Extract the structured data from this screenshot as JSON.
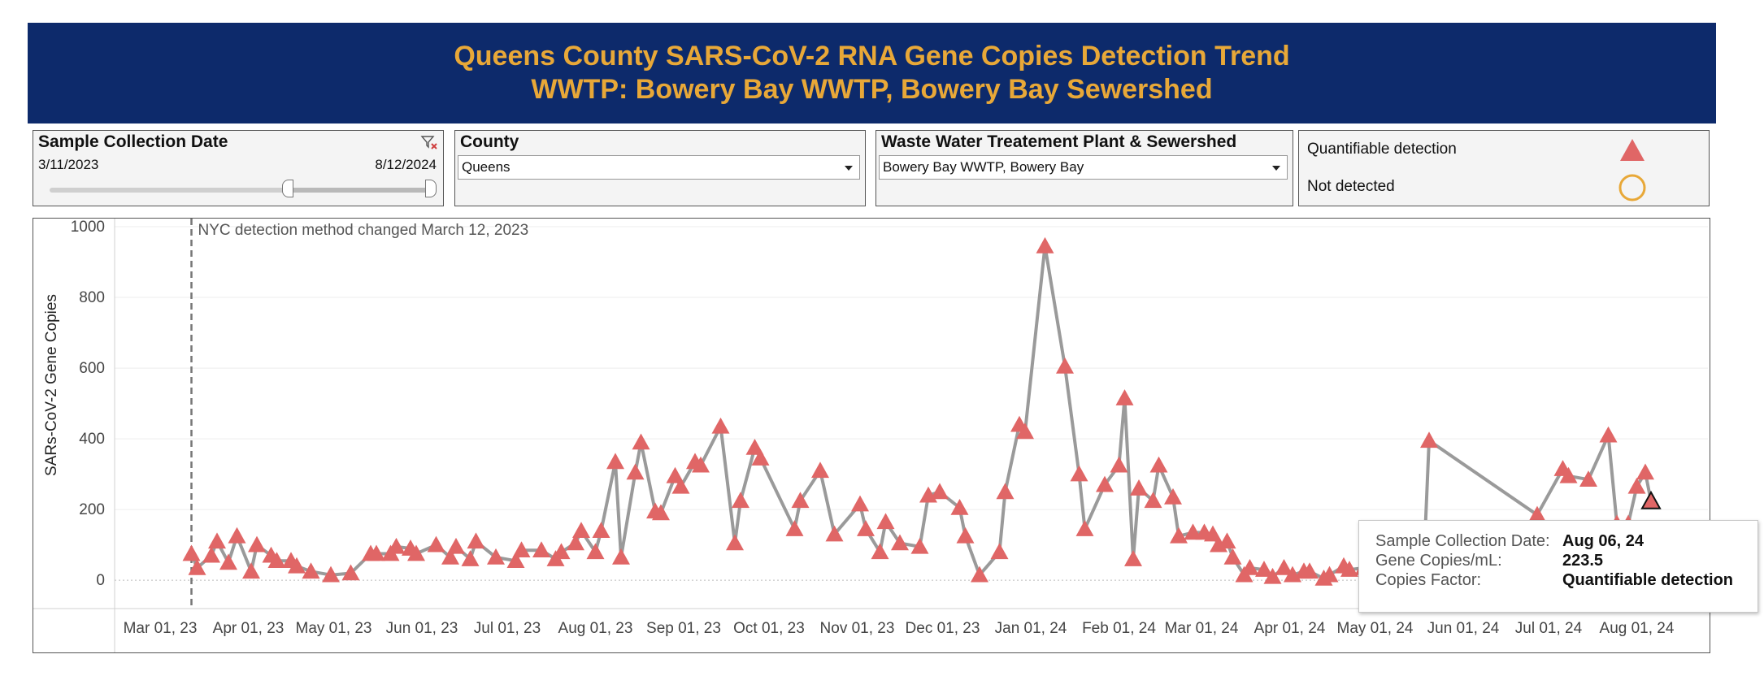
{
  "header": {
    "title_line1": "Queens County SARS-CoV-2 RNA Gene Copies Detection Trend",
    "title_line2": "WWTP: Bowery Bay WWTP, Bowery Bay Sewershed"
  },
  "filters": {
    "date": {
      "label": "Sample Collection Date",
      "start": "3/11/2023",
      "end": "8/12/2024",
      "filter_icon": "clear-filter-icon"
    },
    "county": {
      "label": "County",
      "value": "Queens"
    },
    "plant": {
      "label": "Waste Water Treatement Plant & Sewershed",
      "value": "Bowery Bay WWTP, Bowery Bay"
    }
  },
  "legend": {
    "quantifiable": "Quantifiable detection",
    "not_detected": "Not detected"
  },
  "tooltip": {
    "date_label": "Sample Collection Date:",
    "date_value": "Aug 06, 24",
    "copies_label": "Gene Copies/mL:",
    "copies_value": "223.5",
    "factor_label": "Copies Factor:",
    "factor_value": "Quantifiable detection"
  },
  "colors": {
    "banner": "#0d2a6b",
    "title": "#e8a838",
    "marker": "#e06666",
    "line": "#9a9a9a",
    "not_detected": "#e8a838"
  },
  "chart_data": {
    "type": "line",
    "ylabel": "SARs-CoV-2 Gene Copies",
    "ylim": [
      -80,
      1000
    ],
    "yticks": [
      0,
      200,
      400,
      600,
      800,
      1000
    ],
    "xlim": [
      "2023-02-13",
      "2024-08-26"
    ],
    "xticks": [
      "2023-03-01",
      "2023-04-01",
      "2023-05-01",
      "2023-06-01",
      "2023-07-01",
      "2023-08-01",
      "2023-09-01",
      "2023-10-01",
      "2023-11-01",
      "2023-12-01",
      "2024-01-01",
      "2024-02-01",
      "2024-03-01",
      "2024-04-01",
      "2024-05-01",
      "2024-06-01",
      "2024-07-01",
      "2024-08-01"
    ],
    "xtick_labels": [
      "Mar 01, 23",
      "Apr 01, 23",
      "May 01, 23",
      "Jun 01, 23",
      "Jul 01, 23",
      "Aug 01, 23",
      "Sep 01, 23",
      "Oct 01, 23",
      "Nov 01, 23",
      "Dec 01, 23",
      "Jan 01, 24",
      "Feb 01, 24",
      "Mar 01, 24",
      "Apr 01, 24",
      "May 01, 24",
      "Jun 01, 24",
      "Jul 01, 24",
      "Aug 01, 24"
    ],
    "grid": true,
    "annotation": {
      "date": "2023-03-12",
      "text": "NYC detection method changed March 12, 2023"
    },
    "series": [
      {
        "points": [
          [
            "2023-03-12",
            75
          ],
          [
            "2023-03-14",
            35
          ],
          [
            "2023-03-19",
            70
          ],
          [
            "2023-03-21",
            110
          ],
          [
            "2023-03-25",
            50
          ],
          [
            "2023-03-28",
            125
          ],
          [
            "2023-04-02",
            25
          ],
          [
            "2023-04-04",
            100
          ],
          [
            "2023-04-09",
            70
          ],
          [
            "2023-04-11",
            55
          ],
          [
            "2023-04-16",
            55
          ],
          [
            "2023-04-18",
            40
          ],
          [
            "2023-04-23",
            25
          ],
          [
            "2023-04-30",
            15
          ],
          [
            "2023-05-07",
            20
          ],
          [
            "2023-05-14",
            75
          ],
          [
            "2023-05-16",
            75
          ],
          [
            "2023-05-21",
            75
          ],
          [
            "2023-05-23",
            95
          ],
          [
            "2023-05-28",
            90
          ],
          [
            "2023-05-30",
            75
          ],
          [
            "2023-06-06",
            100
          ],
          [
            "2023-06-11",
            65
          ],
          [
            "2023-06-13",
            95
          ],
          [
            "2023-06-18",
            60
          ],
          [
            "2023-06-20",
            110
          ],
          [
            "2023-06-27",
            65
          ],
          [
            "2023-07-04",
            55
          ],
          [
            "2023-07-06",
            85
          ],
          [
            "2023-07-13",
            85
          ],
          [
            "2023-07-18",
            60
          ],
          [
            "2023-07-20",
            80
          ],
          [
            "2023-07-25",
            105
          ],
          [
            "2023-07-27",
            140
          ],
          [
            "2023-08-01",
            80
          ],
          [
            "2023-08-03",
            140
          ],
          [
            "2023-08-08",
            335
          ],
          [
            "2023-08-10",
            65
          ],
          [
            "2023-08-15",
            305
          ],
          [
            "2023-08-17",
            390
          ],
          [
            "2023-08-22",
            195
          ],
          [
            "2023-08-24",
            190
          ],
          [
            "2023-08-29",
            295
          ],
          [
            "2023-08-31",
            265
          ],
          [
            "2023-09-05",
            335
          ],
          [
            "2023-09-07",
            325
          ],
          [
            "2023-09-14",
            435
          ],
          [
            "2023-09-19",
            105
          ],
          [
            "2023-09-21",
            225
          ],
          [
            "2023-09-26",
            375
          ],
          [
            "2023-09-28",
            345
          ],
          [
            "2023-10-10",
            145
          ],
          [
            "2023-10-12",
            225
          ],
          [
            "2023-10-19",
            310
          ],
          [
            "2023-10-24",
            130
          ],
          [
            "2023-11-02",
            215
          ],
          [
            "2023-11-04",
            145
          ],
          [
            "2023-11-09",
            80
          ],
          [
            "2023-11-11",
            165
          ],
          [
            "2023-11-16",
            105
          ],
          [
            "2023-11-23",
            95
          ],
          [
            "2023-11-26",
            240
          ],
          [
            "2023-11-30",
            250
          ],
          [
            "2023-12-07",
            205
          ],
          [
            "2023-12-09",
            125
          ],
          [
            "2023-12-14",
            15
          ],
          [
            "2023-12-21",
            80
          ],
          [
            "2023-12-23",
            250
          ],
          [
            "2023-12-28",
            440
          ],
          [
            "2023-12-30",
            420
          ],
          [
            "2024-01-06",
            945
          ],
          [
            "2024-01-13",
            605
          ],
          [
            "2024-01-18",
            300
          ],
          [
            "2024-01-20",
            145
          ],
          [
            "2024-01-27",
            270
          ],
          [
            "2024-02-01",
            325
          ],
          [
            "2024-02-03",
            515
          ],
          [
            "2024-02-06",
            60
          ],
          [
            "2024-02-08",
            260
          ],
          [
            "2024-02-13",
            225
          ],
          [
            "2024-02-15",
            325
          ],
          [
            "2024-02-20",
            235
          ],
          [
            "2024-02-22",
            125
          ],
          [
            "2024-02-27",
            135
          ],
          [
            "2024-03-02",
            135
          ],
          [
            "2024-03-05",
            130
          ],
          [
            "2024-03-07",
            100
          ],
          [
            "2024-03-10",
            110
          ],
          [
            "2024-03-12",
            65
          ],
          [
            "2024-03-16",
            15
          ],
          [
            "2024-03-18",
            35
          ],
          [
            "2024-03-23",
            30
          ],
          [
            "2024-03-26",
            10
          ],
          [
            "2024-03-30",
            35
          ],
          [
            "2024-04-02",
            15
          ],
          [
            "2024-04-06",
            25
          ],
          [
            "2024-04-08",
            25
          ],
          [
            "2024-04-13",
            5
          ],
          [
            "2024-04-15",
            15
          ],
          [
            "2024-04-20",
            40
          ],
          [
            "2024-04-22",
            30
          ],
          [
            "2024-04-27",
            35
          ],
          [
            "2024-04-29",
            15
          ],
          [
            "2024-05-04",
            10
          ],
          [
            "2024-05-06",
            10
          ],
          [
            "2024-05-18",
            20
          ],
          [
            "2024-05-20",
            395
          ],
          [
            "2024-06-27",
            185
          ],
          [
            "2024-07-06",
            315
          ],
          [
            "2024-07-08",
            295
          ],
          [
            "2024-07-15",
            285
          ],
          [
            "2024-07-22",
            410
          ],
          [
            "2024-07-25",
            160
          ],
          [
            "2024-07-29",
            160
          ],
          [
            "2024-08-01",
            265
          ],
          [
            "2024-08-06",
            223.5
          ],
          [
            "2024-08-04",
            305
          ]
        ]
      }
    ]
  }
}
